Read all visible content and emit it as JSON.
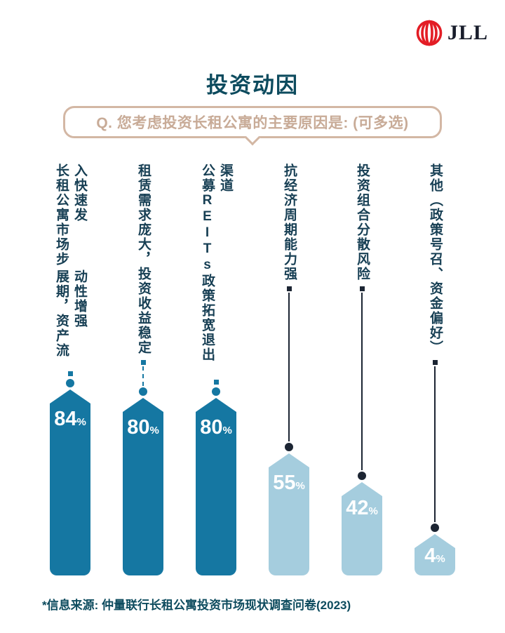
{
  "logo": {
    "brand": "JLL",
    "icon": "globe-meridians-icon",
    "red": "#e31d25",
    "wordmark_color": "#181d2b"
  },
  "title": "投资动因",
  "question": {
    "label": "Q. 您考虑投资长租公寓的主要原因是: (可多选)"
  },
  "chart_data": {
    "type": "bar",
    "orientation": "vertical",
    "unit": "%",
    "title": "投资动因",
    "categories": [
      "长租公寓市场步入快速发展期，资产流动性增强",
      "租赁需求庞大，投资收益稳定",
      "公募REITs政策拓宽退出渠道",
      "抗经济周期能力强",
      "投资组合分散风险",
      "其他（政策号召、资金偏好）"
    ],
    "label_lines": [
      [
        "长租公寓市场步入快速发",
        "展期，资产流动性增强"
      ],
      [
        "租赁需求庞大，投资收益稳定"
      ],
      [
        "公募REITs政策拓宽退出渠道"
      ],
      [
        "抗经济周期能力强"
      ],
      [
        "投资组合分散风险"
      ],
      [
        "其他（政策号召、资金偏好）"
      ]
    ],
    "values": [
      84,
      80,
      80,
      55,
      42,
      4
    ],
    "display_values": [
      "84%",
      "80%",
      "80%",
      "55%",
      "42%",
      "4%"
    ],
    "bar_colors": [
      "#1577a2",
      "#1577a2",
      "#1577a2",
      "#a5cdde",
      "#a5cdde",
      "#a5cdde"
    ],
    "connector_colors": [
      "#1577a2",
      "#1577a2",
      "#1577a2",
      "#1c2533",
      "#1c2533",
      "#1c2533"
    ],
    "connector_styles": [
      "dashed",
      "dashed",
      "dashed",
      "solid",
      "solid",
      "solid"
    ],
    "value_range": [
      0,
      100
    ],
    "grid": false,
    "legend": false
  },
  "source": "*信息来源: 仲量联行长租公寓投资市场现状调查问卷(2023)",
  "colors": {
    "title_teal": "#0d4b5e",
    "label_teal": "#173f54",
    "bar_primary": "#1577a2",
    "bar_secondary": "#a5cdde",
    "connector_navy": "#1c2533",
    "tan_border": "#d3b7a4",
    "tan_text": "#c8ab97",
    "logo_red": "#e31d25",
    "background": "#ffffff"
  }
}
